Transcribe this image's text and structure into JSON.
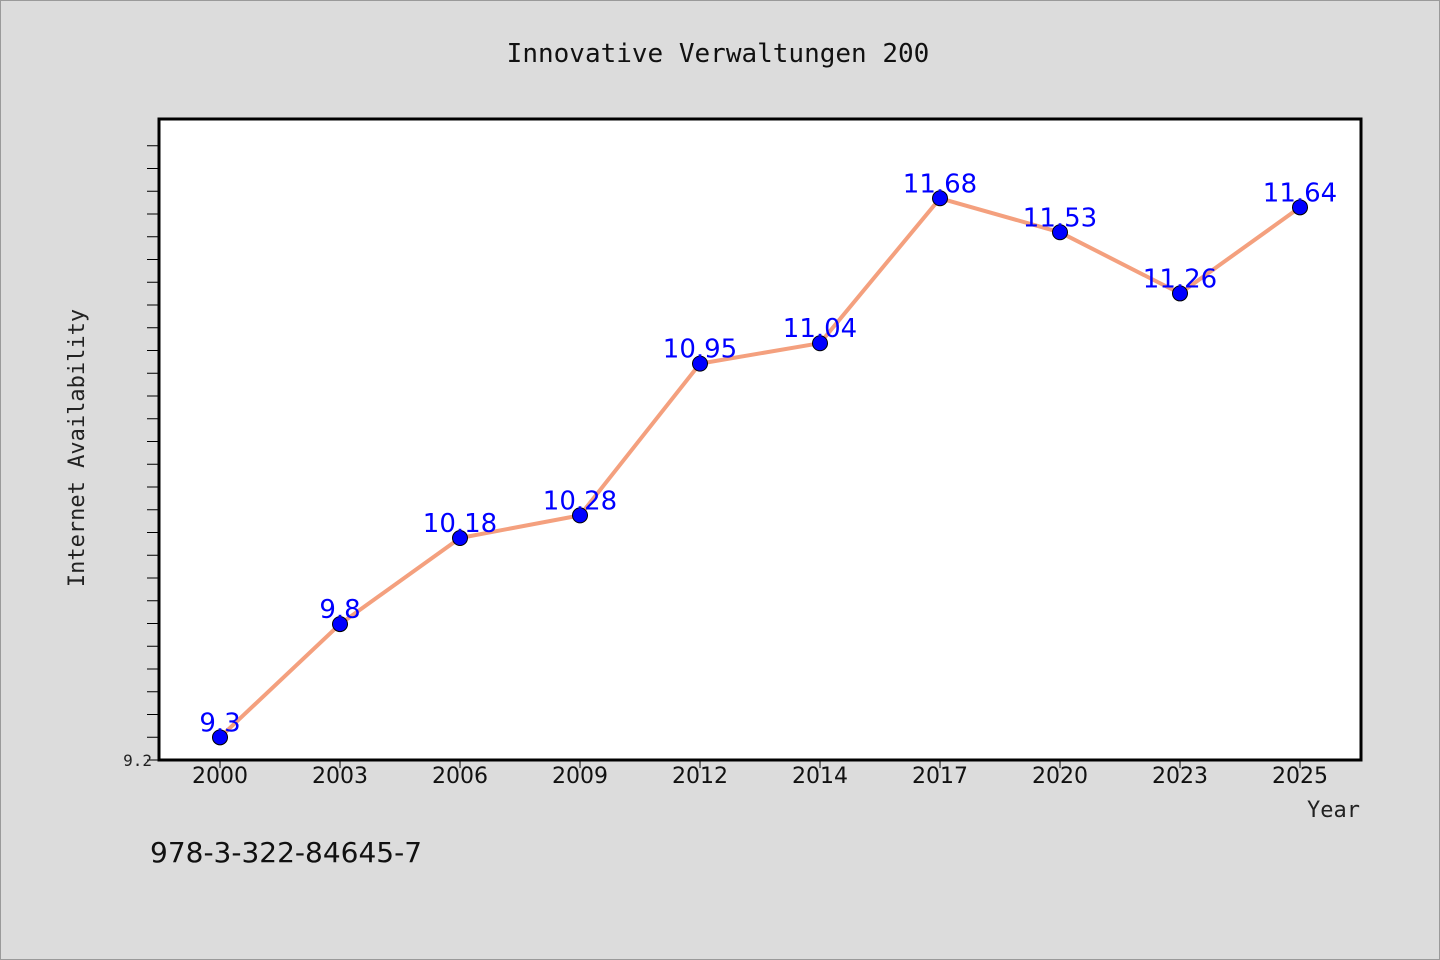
{
  "chart_data": {
    "type": "line",
    "title": "Innovative Verwaltungen 200",
    "xlabel": "Year",
    "ylabel": "Internet Availability",
    "categories": [
      "2000",
      "2003",
      "2006",
      "2009",
      "2012",
      "2014",
      "2017",
      "2020",
      "2023",
      "2025"
    ],
    "series": [
      {
        "values": [
          9.3,
          9.8,
          10.18,
          10.28,
          10.95,
          11.04,
          11.68,
          11.53,
          11.26,
          11.64
        ]
      }
    ],
    "data_labels": [
      "9.3",
      "9.8",
      "10.18",
      "10.28",
      "10.95",
      "11.04",
      "11.68",
      "11.53",
      "11.26",
      "11.64"
    ],
    "y_tick_label": "9.2",
    "ylim": [
      9.2,
      12.0
    ],
    "grid": false,
    "legend": "none",
    "colors": {
      "line": "#f4a07e",
      "marker": "#0000ff",
      "label": "#0000ff"
    }
  },
  "footer": {
    "isbn": "978-3-322-84645-7"
  }
}
